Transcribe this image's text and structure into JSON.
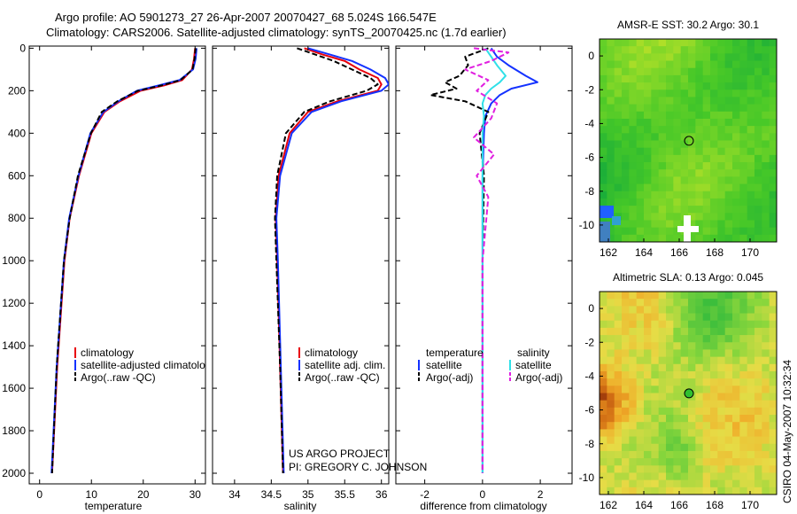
{
  "header": {
    "line1": "Argo profile: AO 5901273_27 26-Apr-2007 20070427_68 5.024S 166.547E",
    "line2": "Climatology: CARS2006. Satellite-adjusted climatology: synTS_20070425.nc (1.7d earlier)"
  },
  "credits": {
    "project": "US ARGO PROJECT",
    "pi": "PI: GREGORY C. JOHNSON",
    "stamp": "CSIRO 04-May-2007 10:32:34"
  },
  "colors": {
    "climatology": "#e8000b",
    "satellite": "#1432ff",
    "argo": "#000000",
    "sat_salinity": "#30e0e8",
    "argo_salinity": "#e020e0"
  },
  "chart_data": [
    {
      "type": "line",
      "name": "temperature-panel",
      "xlabel": "temperature",
      "ylabel": "",
      "xlim": [
        -2,
        32
      ],
      "ylim": [
        2050,
        -10
      ],
      "xticks": [
        0,
        10,
        20,
        30
      ],
      "yticks": [
        0,
        200,
        400,
        600,
        800,
        1000,
        1200,
        1400,
        1600,
        1800,
        2000
      ],
      "legend": [
        "climatology",
        "satellite-adjusted climatology",
        "Argo(..raw -QC)"
      ],
      "series": [
        {
          "name": "climatology",
          "depth": [
            0,
            50,
            100,
            150,
            175,
            200,
            250,
            300,
            400,
            600,
            800,
            1000,
            1500,
            2000
          ],
          "values": [
            30.0,
            29.8,
            29.4,
            27.5,
            24.0,
            19.5,
            15.5,
            12.5,
            10.0,
            7.6,
            5.8,
            4.8,
            3.4,
            2.4
          ]
        },
        {
          "name": "satellite",
          "depth": [
            0,
            50,
            100,
            150,
            175,
            200,
            250,
            300,
            400,
            600,
            800,
            1000,
            1500,
            2000
          ],
          "values": [
            30.3,
            30.1,
            29.6,
            27.0,
            23.0,
            18.8,
            15.2,
            12.3,
            9.8,
            7.5,
            5.7,
            4.7,
            3.3,
            2.3
          ]
        },
        {
          "name": "argo",
          "depth": [
            0,
            50,
            100,
            150,
            175,
            200,
            250,
            300,
            400,
            600,
            800,
            1000,
            1500,
            2000
          ],
          "values": [
            30.1,
            29.9,
            29.5,
            27.2,
            23.5,
            19.0,
            15.0,
            12.0,
            9.9,
            7.4,
            5.8,
            4.7,
            3.3,
            2.4
          ]
        }
      ]
    },
    {
      "type": "line",
      "name": "salinity-panel",
      "xlabel": "salinity",
      "xlim": [
        33.7,
        36.1
      ],
      "ylim": [
        2050,
        -10
      ],
      "xticks": [
        34,
        34.5,
        35,
        35.5,
        36
      ],
      "legend": [
        "climatology",
        "satellite adj. clim.",
        "Argo(..raw -QC)"
      ],
      "series": [
        {
          "name": "climatology",
          "depth": [
            0,
            30,
            60,
            100,
            140,
            170,
            200,
            250,
            300,
            400,
            600,
            800,
            1000,
            1500,
            2000
          ],
          "values": [
            34.95,
            35.2,
            35.5,
            35.7,
            35.95,
            36.0,
            35.95,
            35.4,
            35.0,
            34.75,
            34.6,
            34.56,
            34.58,
            34.62,
            34.66
          ]
        },
        {
          "name": "satellite",
          "depth": [
            0,
            30,
            60,
            100,
            140,
            170,
            200,
            250,
            300,
            400,
            600,
            800,
            1000,
            1500,
            2000
          ],
          "values": [
            35.0,
            35.3,
            35.6,
            35.85,
            36.05,
            36.1,
            36.0,
            35.45,
            35.05,
            34.78,
            34.62,
            34.57,
            34.59,
            34.63,
            34.67
          ]
        },
        {
          "name": "argo",
          "depth": [
            0,
            30,
            60,
            100,
            140,
            170,
            200,
            250,
            300,
            400,
            600,
            800,
            1000,
            1500,
            2000
          ],
          "values": [
            34.85,
            35.1,
            35.35,
            35.6,
            35.85,
            35.95,
            35.8,
            35.3,
            34.95,
            34.7,
            34.58,
            34.55,
            34.57,
            34.62,
            34.66
          ]
        }
      ]
    },
    {
      "type": "line",
      "name": "difference-panel",
      "xlabel": "difference from climatology",
      "xlim": [
        -3,
        3.1
      ],
      "ylim": [
        2050,
        -10
      ],
      "xticks": [
        -2,
        0,
        2
      ],
      "legend_left_title": "temperature",
      "legend_right_title": "salinity",
      "legend": [
        "satellite",
        "Argo(-adj)",
        "satellite",
        "Argo(-adj)"
      ],
      "series": [
        {
          "name": "temperature satellite",
          "depth": [
            0,
            40,
            80,
            130,
            160,
            190,
            220,
            260,
            320,
            400,
            600,
            1000,
            1500,
            2000
          ],
          "values": [
            0.3,
            0.5,
            0.9,
            1.5,
            1.9,
            1.0,
            0.6,
            0.3,
            0.1,
            0.05,
            0.0,
            0.0,
            0.0,
            0.0
          ]
        },
        {
          "name": "temperature argo",
          "depth": [
            0,
            40,
            80,
            130,
            160,
            190,
            220,
            250,
            300,
            400,
            600,
            1000,
            1500,
            2000
          ],
          "values": [
            0.2,
            -0.6,
            -0.5,
            -0.8,
            -1.3,
            -0.9,
            -1.8,
            -0.6,
            0.2,
            -0.1,
            0.05,
            0.0,
            0.0,
            0.0
          ]
        },
        {
          "name": "salinity satellite",
          "depth": [
            0,
            40,
            80,
            130,
            160,
            190,
            220,
            260,
            320,
            400,
            600,
            1000,
            1500,
            2000
          ],
          "values": [
            0.1,
            0.3,
            0.5,
            0.8,
            0.6,
            0.3,
            0.1,
            0.0,
            0.05,
            0.0,
            0.0,
            0.0,
            0.0,
            0.0
          ]
        },
        {
          "name": "salinity argo",
          "depth": [
            0,
            20,
            60,
            100,
            150,
            200,
            260,
            330,
            420,
            500,
            600,
            700,
            1000,
            1500,
            2000
          ],
          "values": [
            -0.3,
            0.9,
            0.3,
            -0.6,
            0.2,
            -0.2,
            0.5,
            0.3,
            -0.3,
            0.4,
            -0.2,
            0.2,
            0.0,
            0.0,
            0.0
          ]
        }
      ]
    },
    {
      "type": "heatmap",
      "name": "sst-map",
      "title": "AMSR-E SST: 30.2 Argo: 30.1",
      "xlim": [
        161.5,
        171.5
      ],
      "ylim": [
        -11,
        1
      ],
      "xticks": [
        162,
        164,
        166,
        168,
        170
      ],
      "yticks": [
        0,
        -2,
        -4,
        -6,
        -8,
        -10
      ],
      "argo_position": [
        166.55,
        -5.02
      ]
    },
    {
      "type": "heatmap",
      "name": "sla-map",
      "title": "Altimetric SLA: 0.13 Argo: 0.045",
      "xlim": [
        161.5,
        171.5
      ],
      "ylim": [
        -11,
        1
      ],
      "xticks": [
        162,
        164,
        166,
        168,
        170
      ],
      "yticks": [
        0,
        -2,
        -4,
        -6,
        -8,
        -10
      ],
      "argo_position": [
        166.55,
        -5.02
      ]
    }
  ]
}
